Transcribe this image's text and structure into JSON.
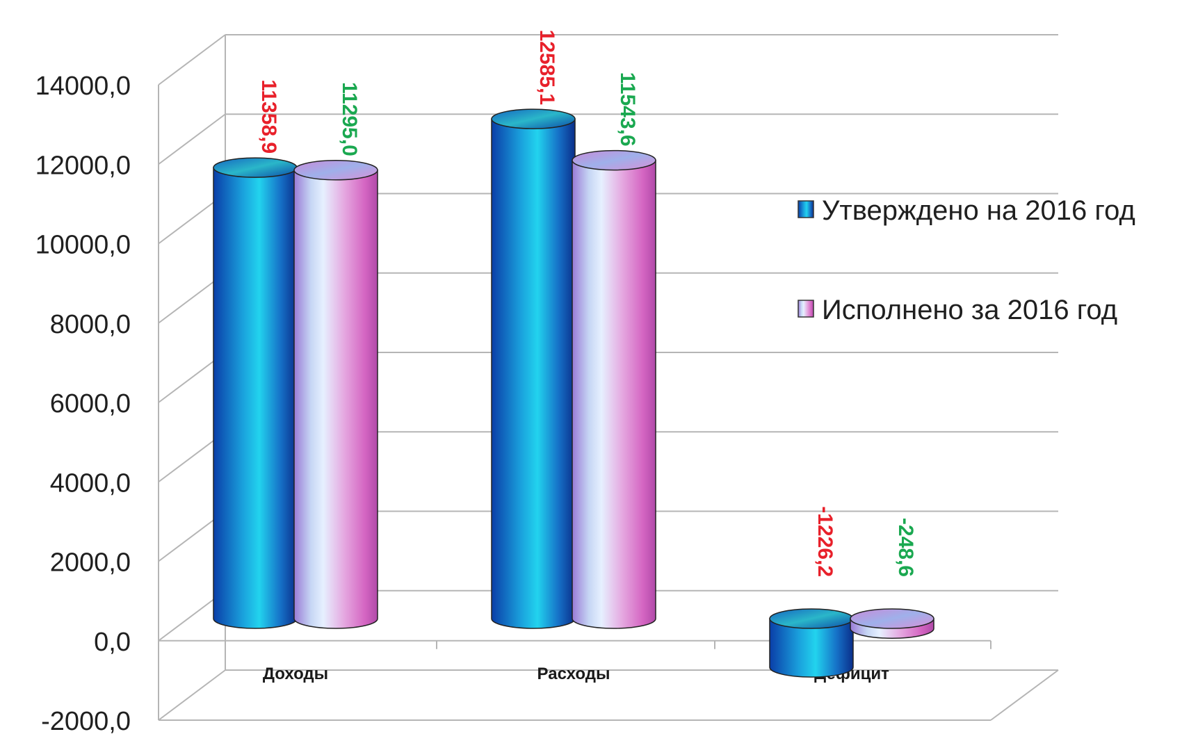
{
  "chart_data": {
    "type": "bar",
    "style": "3d-cylinder",
    "categories": [
      "Доходы",
      "Расходы",
      "Дефицит"
    ],
    "series": [
      {
        "name": "Утверждено на 2016 год",
        "values": [
          11358.9,
          12585.1,
          -1226.2
        ],
        "labels": [
          "11358,9",
          "12585,1",
          "-1226,2"
        ],
        "label_color": "#e8202a"
      },
      {
        "name": "Исполнено за 2016 год",
        "values": [
          11295.0,
          11543.6,
          -248.6
        ],
        "labels": [
          "11295,0",
          "11543,6",
          "-248,6"
        ],
        "label_color": "#1aa850"
      }
    ],
    "ylim": [
      -2000,
      14000
    ],
    "y_ticks": [
      14000,
      12000,
      10000,
      8000,
      6000,
      4000,
      2000,
      0,
      -2000
    ],
    "y_tick_labels": [
      "14000,0",
      "12000,0",
      "10000,0",
      "8000,0",
      "6000,0",
      "4000,0",
      "2000,0",
      "0,0",
      "-2000,0"
    ],
    "grid": true,
    "legend_position": "right",
    "data_label_orientation": "vertical"
  }
}
